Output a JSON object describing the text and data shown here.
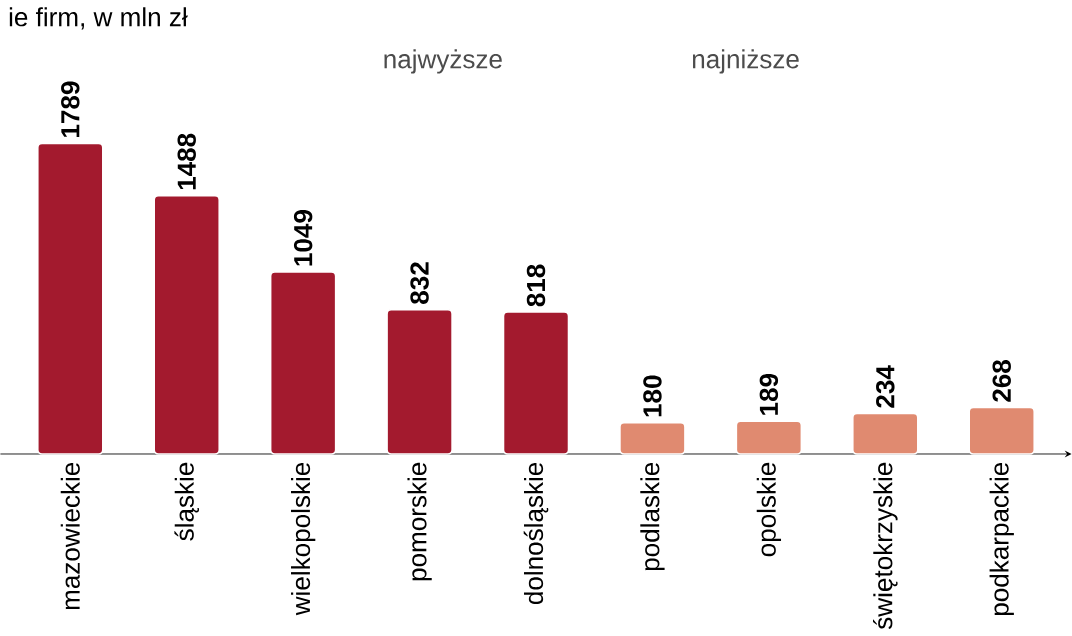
{
  "chart_data": {
    "type": "bar",
    "title": "ie firm, w mln zł",
    "categories": [
      "mazowieckie",
      "śląskie",
      "wielkopolskie",
      "pomorskie",
      "dolnośląskie",
      "podlaskie",
      "opolskie",
      "świętokrzyskie",
      "podkarpackie"
    ],
    "values": [
      1789,
      1488,
      1049,
      832,
      818,
      180,
      189,
      234,
      268
    ],
    "colors": [
      "#a31a2e",
      "#a31a2e",
      "#a31a2e",
      "#a31a2e",
      "#a31a2e",
      "#e08a70",
      "#e08a70",
      "#e08a70",
      "#e08a70"
    ],
    "data_labels": true,
    "annotations": [
      "najwyższe",
      "najniższe"
    ]
  }
}
